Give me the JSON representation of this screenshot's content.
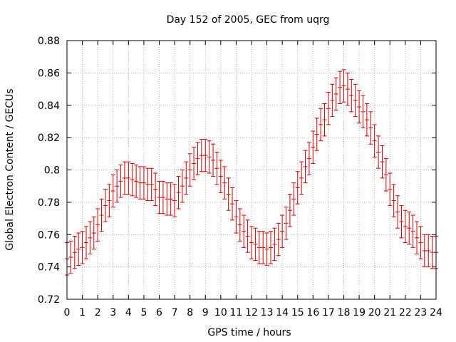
{
  "chart_data": {
    "type": "scatter",
    "style": "errorbars",
    "title": "Day 152 of 2005, GEC from uqrg",
    "xlabel": "GPS time / hours",
    "ylabel": "Global Electron Content / GECUs",
    "xlim": [
      0,
      24
    ],
    "ylim": [
      0.72,
      0.88
    ],
    "grid": true,
    "xticks": [
      0,
      1,
      2,
      3,
      4,
      5,
      6,
      7,
      8,
      9,
      10,
      11,
      12,
      13,
      14,
      15,
      16,
      17,
      18,
      19,
      20,
      21,
      22,
      23,
      24
    ],
    "xtick_labels": [
      "0",
      "1",
      "2",
      "3",
      "4",
      "5",
      "6",
      "7",
      "8",
      "9",
      "10",
      "11",
      "12",
      "13",
      "14",
      "15",
      "16",
      "17",
      "18",
      "19",
      "20",
      "21",
      "22",
      "23",
      "24"
    ],
    "yticks": [
      0.72,
      0.74,
      0.76,
      0.78,
      0.8,
      0.82,
      0.84,
      0.86,
      0.88
    ],
    "ytick_labels": [
      "0.72",
      "0.74",
      "0.76",
      "0.78",
      "0.8",
      "0.82",
      "0.84",
      "0.86",
      "0.88"
    ],
    "error": 0.01,
    "color": "#cc0000",
    "series": [
      {
        "name": "GEC",
        "x": [
          0,
          0.25,
          0.5,
          0.75,
          1,
          1.25,
          1.5,
          1.75,
          2,
          2.25,
          2.5,
          2.75,
          3,
          3.25,
          3.5,
          3.75,
          4,
          4.25,
          4.5,
          4.75,
          5,
          5.25,
          5.5,
          5.75,
          6,
          6.25,
          6.5,
          6.75,
          7,
          7.25,
          7.5,
          7.75,
          8,
          8.25,
          8.5,
          8.75,
          9,
          9.25,
          9.5,
          9.75,
          10,
          10.25,
          10.5,
          10.75,
          11,
          11.25,
          11.5,
          11.75,
          12,
          12.25,
          12.5,
          12.75,
          13,
          13.25,
          13.5,
          13.75,
          14,
          14.25,
          14.5,
          14.75,
          15,
          15.25,
          15.5,
          15.75,
          16,
          16.25,
          16.5,
          16.75,
          17,
          17.25,
          17.5,
          17.75,
          18,
          18.25,
          18.5,
          18.75,
          19,
          19.25,
          19.5,
          19.75,
          20,
          20.25,
          20.5,
          20.75,
          21,
          21.25,
          21.5,
          21.75,
          22,
          22.25,
          22.5,
          22.75,
          23,
          23.25,
          23.5,
          23.75,
          24
        ],
        "y": [
          0.745,
          0.746,
          0.749,
          0.751,
          0.752,
          0.755,
          0.758,
          0.761,
          0.766,
          0.772,
          0.778,
          0.781,
          0.787,
          0.79,
          0.793,
          0.795,
          0.795,
          0.794,
          0.793,
          0.792,
          0.792,
          0.791,
          0.791,
          0.788,
          0.783,
          0.783,
          0.782,
          0.782,
          0.781,
          0.786,
          0.79,
          0.795,
          0.8,
          0.804,
          0.807,
          0.809,
          0.809,
          0.808,
          0.806,
          0.801,
          0.796,
          0.792,
          0.785,
          0.779,
          0.771,
          0.766,
          0.762,
          0.759,
          0.755,
          0.754,
          0.752,
          0.752,
          0.751,
          0.752,
          0.754,
          0.757,
          0.762,
          0.767,
          0.775,
          0.782,
          0.789,
          0.795,
          0.802,
          0.807,
          0.814,
          0.822,
          0.828,
          0.831,
          0.838,
          0.843,
          0.847,
          0.851,
          0.852,
          0.85,
          0.846,
          0.843,
          0.839,
          0.836,
          0.831,
          0.826,
          0.818,
          0.811,
          0.805,
          0.797,
          0.788,
          0.781,
          0.774,
          0.768,
          0.765,
          0.764,
          0.762,
          0.758,
          0.755,
          0.75,
          0.75,
          0.749,
          0.749
        ]
      }
    ]
  }
}
